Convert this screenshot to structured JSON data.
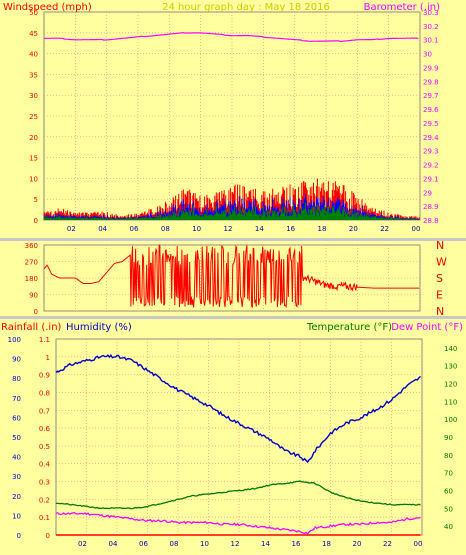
{
  "colors": {
    "panel_bg": "#ffffa0",
    "window_bg": "#c8c8c8",
    "windspeed": "#ff0000",
    "windspeed_avg": "#0000ff",
    "windspeed_min": "#008000",
    "barometer": "#ff00ff",
    "direction": "#ff0000",
    "humidity": "#0000cc",
    "temperature": "#007700",
    "dew_point": "#ff00ff",
    "rainfall": "#ff0000",
    "title": "#cccc00"
  },
  "chart_data": [
    {
      "type": "line",
      "id": "wind_baro",
      "title": "24 hour graph day : May 18 2016",
      "left_label": "Windspeed (mph)",
      "right_label": "Barometer (.in)",
      "x_ticks": [
        "02",
        "04",
        "06",
        "08",
        "10",
        "12",
        "14",
        "16",
        "18",
        "20",
        "22",
        "00"
      ],
      "y_left_ticks": [
        "0",
        "5",
        "10",
        "15",
        "20",
        "25",
        "30",
        "35",
        "40",
        "45",
        "50"
      ],
      "y_left_range": [
        0,
        50
      ],
      "y_right_ticks": [
        "28.8",
        "28.9",
        "29",
        "29.1",
        "29.2",
        "29.3",
        "29.4",
        "29.5",
        "29.6",
        "29.7",
        "29.8",
        "29.9",
        "30",
        "30.1",
        "30.2",
        "30.3"
      ],
      "y_right_range": [
        28.8,
        30.3
      ],
      "series": [
        {
          "name": "Barometer",
          "axis": "right",
          "x": [
            0,
            1,
            2,
            3,
            4,
            5,
            6,
            7,
            8,
            9,
            10,
            11,
            12,
            13,
            14,
            15,
            16,
            17,
            18,
            19,
            20,
            21,
            22,
            23,
            24
          ],
          "y": [
            30.11,
            30.11,
            30.1,
            30.1,
            30.1,
            30.11,
            30.12,
            30.13,
            30.14,
            30.15,
            30.15,
            30.14,
            30.13,
            30.13,
            30.12,
            30.11,
            30.1,
            30.09,
            30.09,
            30.09,
            30.1,
            30.1,
            30.11,
            30.11,
            30.11
          ]
        },
        {
          "name": "Wind gust envelope",
          "axis": "left",
          "x": [
            0,
            1,
            2,
            3,
            4,
            5,
            6,
            7,
            8,
            9,
            10,
            11,
            12,
            13,
            14,
            15,
            16,
            17,
            18,
            19,
            20,
            21,
            22,
            23,
            24
          ],
          "y": [
            2,
            3,
            2,
            2,
            2,
            1,
            2,
            3,
            5,
            8,
            6,
            7,
            9,
            8,
            7,
            8,
            9,
            10,
            10,
            9,
            6,
            3,
            2,
            1,
            1
          ]
        }
      ]
    },
    {
      "type": "line",
      "id": "wind_direction",
      "x_ticks": [
        "02",
        "04",
        "06",
        "08",
        "10",
        "12",
        "14",
        "16",
        "18",
        "20",
        "22",
        "00"
      ],
      "y_ticks": [
        "0",
        "90",
        "180",
        "270",
        "360"
      ],
      "y_range": [
        0,
        360
      ],
      "compass_labels": [
        "N",
        "W",
        "S",
        "E",
        "N"
      ],
      "series": [
        {
          "name": "Wind direction",
          "x": [
            0,
            0.2,
            0.5,
            1,
            1.5,
            2,
            2.5,
            3,
            3.5,
            4,
            4.5,
            5,
            6,
            7,
            8,
            9,
            10,
            11,
            12,
            13,
            14,
            15,
            16,
            17,
            18,
            19,
            20,
            21,
            22,
            23,
            24
          ],
          "y": [
            230,
            250,
            200,
            180,
            180,
            180,
            150,
            150,
            160,
            210,
            260,
            270,
            340,
            300,
            180,
            330,
            200,
            340,
            250,
            320,
            190,
            330,
            200,
            170,
            140,
            135,
            130,
            125,
            125,
            125,
            125
          ]
        }
      ]
    },
    {
      "type": "line",
      "id": "humidity_temp",
      "left_label_rain": "Rainfall (.in)",
      "left_label_humidity": "Humidity (%)",
      "right_label_temp": "Temperature (°F)",
      "right_label_dew": "Dew Point (°F)",
      "x_ticks": [
        "02",
        "04",
        "06",
        "08",
        "10",
        "12",
        "14",
        "16",
        "18",
        "20",
        "22",
        "00"
      ],
      "y_humidity_ticks": [
        "0",
        "10",
        "20",
        "30",
        "40",
        "50",
        "60",
        "70",
        "80",
        "90",
        "100"
      ],
      "y_humidity_range": [
        0,
        100
      ],
      "y_rain_ticks": [
        "0",
        "0.1",
        "0.2",
        "0.3",
        "0.4",
        "0.5",
        "0.6",
        "0.7",
        "0.8",
        "0.9",
        "1",
        "1.1"
      ],
      "y_rain_range": [
        0,
        1.1
      ],
      "y_temp_ticks": [
        "40",
        "50",
        "60",
        "70",
        "80",
        "90",
        "100",
        "110",
        "120",
        "130",
        "140"
      ],
      "y_temp_range": [
        35,
        145
      ],
      "series": [
        {
          "name": "Humidity",
          "x": [
            0,
            1,
            2,
            3,
            4,
            5,
            6,
            7,
            8,
            9,
            10,
            11,
            12,
            13,
            14,
            15,
            16,
            16.5,
            17,
            18,
            19,
            20,
            21,
            22,
            23,
            24
          ],
          "y": [
            83,
            87,
            89,
            91,
            91,
            89,
            84,
            79,
            74,
            70,
            66,
            61,
            57,
            53,
            49,
            43,
            40,
            37,
            43,
            52,
            57,
            60,
            64,
            69,
            76,
            81
          ]
        },
        {
          "name": "Temperature",
          "x": [
            0,
            1,
            2,
            3,
            4,
            5,
            6,
            7,
            8,
            9,
            10,
            11,
            12,
            13,
            14,
            15,
            16,
            17,
            18,
            19,
            20,
            21,
            22,
            23,
            24
          ],
          "y": [
            53,
            52,
            51,
            50,
            50,
            50,
            51,
            53,
            55,
            57,
            58,
            59,
            60,
            61,
            63,
            64,
            65,
            64,
            59,
            56,
            54,
            53,
            52,
            52,
            52
          ]
        },
        {
          "name": "Dew Point",
          "x": [
            0,
            1,
            2,
            3,
            4,
            5,
            6,
            7,
            8,
            9,
            10,
            11,
            12,
            13,
            14,
            15,
            16,
            16.5,
            17,
            18,
            19,
            20,
            21,
            22,
            23,
            24
          ],
          "y": [
            47,
            47,
            47,
            46,
            45,
            44,
            43,
            43,
            42,
            42,
            42,
            41,
            41,
            40,
            39,
            38,
            37,
            36,
            39,
            40,
            41,
            41,
            42,
            42,
            44,
            45
          ]
        },
        {
          "name": "Rainfall",
          "x": [
            0,
            24
          ],
          "y": [
            0,
            0
          ]
        }
      ]
    }
  ]
}
